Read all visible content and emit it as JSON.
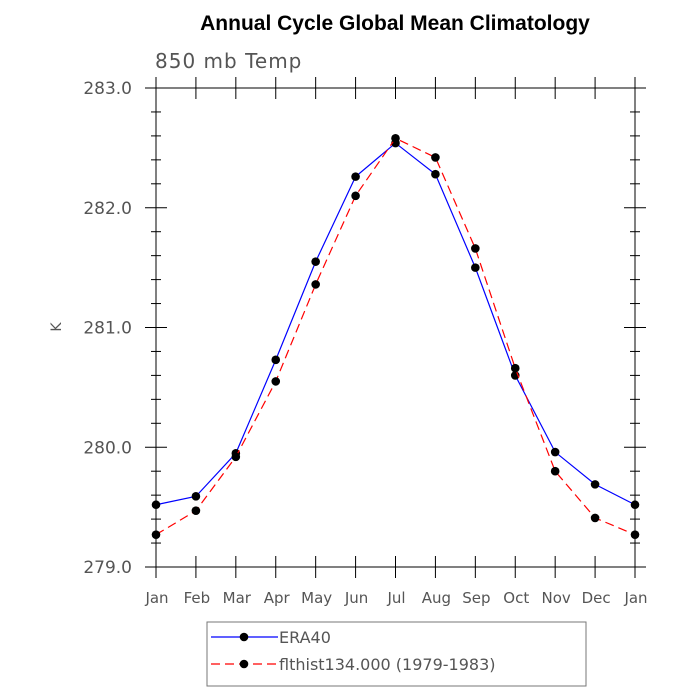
{
  "chart_data": {
    "type": "line",
    "title": "Annual Cycle Global Mean Climatology",
    "subtitle": "850 mb Temp",
    "xlabel": "",
    "ylabel": "K",
    "categories": [
      "Jan",
      "Feb",
      "Mar",
      "Apr",
      "May",
      "Jun",
      "Jul",
      "Aug",
      "Sep",
      "Oct",
      "Nov",
      "Dec",
      "Jan"
    ],
    "ylim": [
      279.0,
      283.0
    ],
    "yticks": [
      "279.0",
      "280.0",
      "281.0",
      "282.0",
      "283.0"
    ],
    "series": [
      {
        "name": "ERA40",
        "color": "#0000ff",
        "dash": "solid",
        "values": [
          279.52,
          279.59,
          279.95,
          280.73,
          281.55,
          282.26,
          282.54,
          282.28,
          281.5,
          280.6,
          279.96,
          279.69,
          279.52
        ]
      },
      {
        "name": "flthist134.000 (1979-1983)",
        "color": "#ff0000",
        "dash": "dashed",
        "values": [
          279.27,
          279.47,
          279.92,
          280.55,
          281.36,
          282.1,
          282.58,
          282.42,
          281.66,
          280.66,
          279.8,
          279.41,
          279.27
        ]
      }
    ],
    "legend": "bottom",
    "grid": false
  }
}
